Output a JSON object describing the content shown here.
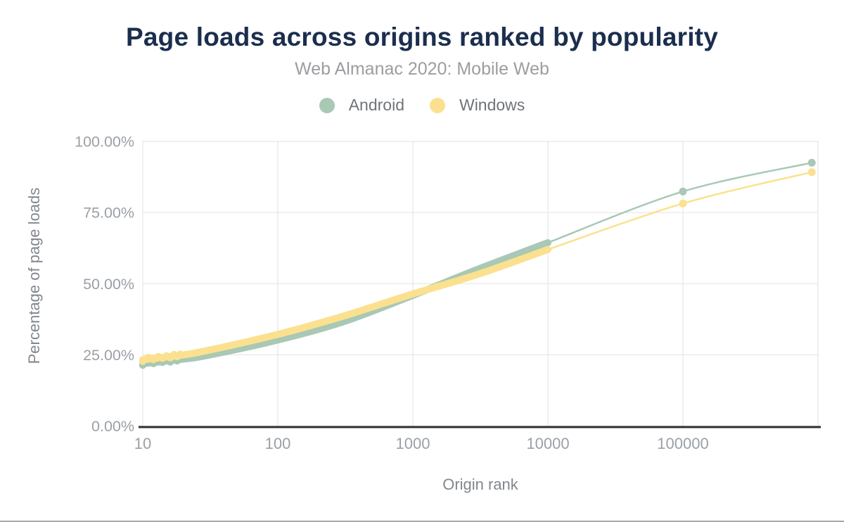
{
  "header": {
    "title": "Page loads across origins ranked by popularity",
    "subtitle": "Web Almanac 2020: Mobile Web"
  },
  "legend": {
    "items": [
      {
        "label": "Android",
        "color": "#a9c8b5"
      },
      {
        "label": "Windows",
        "color": "#fbe18f"
      }
    ]
  },
  "chart_data": {
    "type": "line",
    "title": "Page loads across origins ranked by popularity",
    "subtitle": "Web Almanac 2020: Mobile Web",
    "xlabel": "Origin rank",
    "ylabel": "Percentage of page loads",
    "x_scale": "log",
    "xlim": [
      10,
      1000000
    ],
    "ylim": [
      0,
      100
    ],
    "grid": true,
    "legend_position": "top",
    "x_ticks": [
      {
        "value": 10,
        "label": "10"
      },
      {
        "value": 100,
        "label": "100"
      },
      {
        "value": 1000,
        "label": "1000"
      },
      {
        "value": 10000,
        "label": "10000"
      },
      {
        "value": 100000,
        "label": "100000"
      }
    ],
    "y_ticks": [
      {
        "value": 0,
        "label": "0.00%"
      },
      {
        "value": 25,
        "label": "25.00%"
      },
      {
        "value": 50,
        "label": "50.00%"
      },
      {
        "value": 75,
        "label": "75.00%"
      },
      {
        "value": 100,
        "label": "100.00%"
      }
    ],
    "band_max_rank": 10000,
    "series": [
      {
        "name": "Android",
        "color": "#a9c8b5",
        "points": [
          [
            10,
            21.9
          ],
          [
            20,
            23.5
          ],
          [
            30,
            24.8
          ],
          [
            100,
            30.2
          ],
          [
            300,
            36.5
          ],
          [
            1000,
            45.9
          ],
          [
            3000,
            55.0
          ],
          [
            10000,
            64.4
          ],
          [
            100000,
            82.4
          ],
          [
            900000,
            92.5
          ]
        ]
      },
      {
        "name": "Windows",
        "color": "#fbe18f",
        "points": [
          [
            10,
            23.3
          ],
          [
            20,
            25.0
          ],
          [
            30,
            26.5
          ],
          [
            100,
            32.2
          ],
          [
            300,
            38.5
          ],
          [
            1000,
            46.4
          ],
          [
            3000,
            53.2
          ],
          [
            10000,
            62.0
          ],
          [
            100000,
            78.2
          ],
          [
            900000,
            89.2
          ]
        ]
      }
    ]
  },
  "colors": {
    "title": "#1c2e4e",
    "subtitle": "#9c9da1",
    "tick_label": "#9ba0a6",
    "axis_title": "#82878d",
    "gridline": "#e8e8ea",
    "axis_line": "#2e2e31",
    "android": "#a9c8b5",
    "windows": "#fbe18f"
  }
}
